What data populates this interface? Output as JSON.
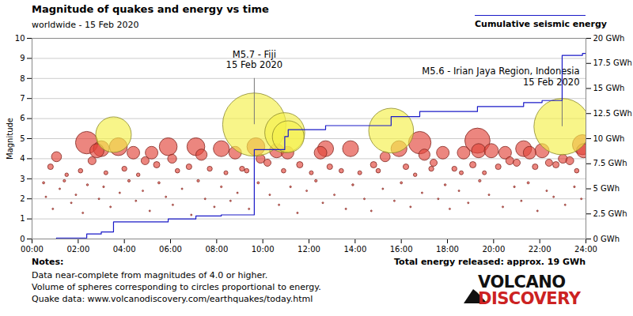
{
  "chart_data": {
    "type": "scatter",
    "title": "Magnitude of quakes and energy vs time",
    "subtitle": "worldwide - 15 Feb 2020",
    "y_label": "Magnitude",
    "xlim": [
      0,
      24
    ],
    "xticks": [
      {
        "value": 0,
        "label": "00:00"
      },
      {
        "value": 2,
        "label": "02:00"
      },
      {
        "value": 4,
        "label": "04:00"
      },
      {
        "value": 6,
        "label": "06:00"
      },
      {
        "value": 8,
        "label": "08:00"
      },
      {
        "value": 10,
        "label": "10:00"
      },
      {
        "value": 12,
        "label": "12:00"
      },
      {
        "value": 14,
        "label": "14:00"
      },
      {
        "value": 16,
        "label": "16:00"
      },
      {
        "value": 18,
        "label": "18:00"
      },
      {
        "value": 20,
        "label": "20:00"
      },
      {
        "value": 22,
        "label": "22:00"
      },
      {
        "value": 24,
        "label": "24:00"
      }
    ],
    "ylim": [
      0,
      10
    ],
    "yticks": [
      0,
      1,
      2,
      3,
      4,
      5,
      6,
      7,
      8,
      9,
      10
    ],
    "y2lim": [
      0,
      20
    ],
    "y2ticks": [
      {
        "value": 0,
        "label": "0 GWh"
      },
      {
        "value": 2.5,
        "label": "2.5 GWh"
      },
      {
        "value": 5,
        "label": "5 GWh"
      },
      {
        "value": 7.5,
        "label": "7.5 GWh"
      },
      {
        "value": 10,
        "label": "10 GWh"
      },
      {
        "value": 12.5,
        "label": "12.5 GWh"
      },
      {
        "value": 15,
        "label": "15 GWh"
      },
      {
        "value": 17.5,
        "label": "17.5 GWh"
      },
      {
        "value": 20,
        "label": "20 GWh"
      }
    ],
    "grid": "y",
    "legend": "top-right",
    "series": [
      {
        "type": "scatter",
        "marker": "circle",
        "color": "#e2453a",
        "x": [
          1.06,
          2.37,
          2.81,
          3.0,
          3.74,
          4.39,
          4.9,
          5.18,
          5.9,
          6.07,
          7.1,
          7.34,
          8.2,
          8.8,
          9.7,
          10.6,
          11.07,
          12.5,
          12.72,
          13.8,
          15.3,
          15.9,
          16.8,
          17.0,
          17.8,
          18.7,
          19.3,
          19.35,
          19.9,
          20.5,
          21.3,
          21.56,
          22.1,
          23.0,
          23.85,
          23.9,
          0.8,
          1.5,
          2.1,
          2.6,
          3.2,
          4.0,
          4.6,
          5.4,
          6.3,
          6.8,
          7.7,
          8.4,
          9.1,
          9.3,
          9.9,
          10.2,
          10.9,
          11.6,
          12.1,
          12.9,
          13.4,
          14.2,
          14.8,
          15.0,
          16.2,
          16.6,
          17.3,
          17.4,
          18.3,
          18.6,
          19.1,
          19.6,
          20.2,
          20.7,
          21.0,
          21.8,
          22.4,
          22.7,
          23.3,
          23.6,
          0.5,
          0.6,
          0.9,
          1.2,
          1.4,
          1.7,
          1.9,
          2.2,
          2.4,
          2.9,
          3.1,
          3.4,
          3.8,
          4.2,
          4.5,
          4.8,
          5.1,
          5.5,
          5.8,
          6.1,
          6.5,
          6.9,
          7.2,
          7.5,
          7.9,
          8.2,
          8.6,
          8.9,
          9.4,
          9.8,
          10.3,
          10.7,
          11.2,
          11.5,
          11.9,
          12.3,
          12.6,
          13.1,
          13.6,
          13.9,
          14.4,
          14.7,
          15.2,
          15.7,
          16.0,
          16.4,
          16.9,
          17.6,
          17.9,
          18.1,
          18.5,
          18.9,
          19.4,
          19.8,
          20.4,
          20.9,
          21.2,
          21.5,
          21.9,
          22.3,
          22.6,
          23.1,
          23.5,
          23.8
        ],
        "values": [
          4.1,
          4.8,
          4.4,
          4.5,
          4.6,
          4.3,
          3.9,
          4.3,
          4.6,
          4.0,
          4.6,
          4.2,
          4.5,
          4.3,
          4.6,
          4.4,
          4.3,
          4.3,
          4.5,
          4.5,
          4.1,
          4.5,
          4.8,
          4.2,
          4.3,
          4.3,
          4.9,
          4.4,
          4.4,
          4.3,
          4.5,
          4.3,
          4.4,
          4.0,
          4.7,
          4.4,
          3.6,
          3.2,
          3.4,
          3.9,
          3.3,
          3.5,
          3.2,
          3.7,
          3.4,
          3.6,
          3.5,
          3.3,
          3.5,
          3.4,
          4.0,
          3.8,
          3.4,
          3.7,
          3.3,
          3.6,
          3.4,
          3.3,
          3.7,
          3.4,
          3.6,
          3.2,
          3.5,
          3.8,
          3.5,
          3.3,
          3.7,
          3.3,
          3.6,
          3.9,
          3.8,
          3.6,
          3.8,
          3.7,
          3.9,
          3.4,
          2.8,
          2.1,
          1.5,
          2.5,
          2.9,
          1.8,
          2.2,
          1.3,
          2.7,
          2.0,
          2.6,
          1.6,
          2.3,
          2.9,
          1.9,
          2.4,
          1.4,
          2.8,
          2.1,
          1.7,
          2.5,
          1.2,
          2.9,
          2.0,
          1.6,
          2.6,
          1.9,
          2.3,
          1.5,
          2.8,
          2.2,
          1.7,
          2.6,
          1.3,
          2.4,
          2.9,
          1.8,
          2.2,
          1.5,
          2.7,
          2.0,
          1.4,
          2.5,
          1.9,
          2.8,
          1.6,
          2.3,
          2.0,
          2.7,
          1.5,
          2.4,
          1.8,
          2.9,
          2.2,
          1.6,
          2.6,
          1.9,
          2.8,
          1.4,
          2.4,
          2.1,
          1.7,
          2.6,
          2.0
        ]
      },
      {
        "type": "scatter",
        "marker": "circle",
        "color": "#f5f04a",
        "x": [
          3.53,
          9.63,
          10.95,
          11.1,
          15.56,
          22.97
        ],
        "values": [
          5.2,
          5.7,
          5.3,
          5.1,
          5.4,
          5.6
        ]
      },
      {
        "type": "line",
        "name": "Cumulative seismic energy",
        "color": "#1a1ac8",
        "axis": "y2",
        "line_style": "step",
        "x": [
          0,
          1.06,
          2.37,
          3.0,
          3.53,
          5.9,
          7.1,
          8.2,
          9.63,
          10.95,
          11.1,
          12.72,
          15.56,
          16.8,
          19.3,
          21.3,
          22.1,
          22.97,
          23.85,
          24
        ],
        "values": [
          0,
          0.1,
          0.5,
          0.7,
          1.7,
          2.0,
          2.3,
          2.4,
          8.9,
          10.2,
          10.9,
          11.3,
          12.2,
          12.7,
          13.2,
          13.6,
          13.8,
          18.3,
          18.5,
          18.5
        ]
      }
    ],
    "annotations": [
      {
        "text": [
          "M5.7 - Fiji",
          "15 Feb 2020"
        ],
        "x": 9.63,
        "y": 5.7
      },
      {
        "text": [
          "M5.6 - Irian Jaya Region, Indonesia",
          "15 Feb 2020"
        ],
        "x": 22.97,
        "y": 5.6
      }
    ],
    "notes": {
      "heading": "Notes:",
      "lines": [
        "Data near-complete from magnitudes of 4.0 or higher.",
        "Volume of spheres corresponding to circles proportional to energy.",
        "Quake data: www.volcanodiscovery.com/earthquakes/today.html"
      ]
    },
    "total_energy": "Total energy released: approx. 19 GWh",
    "logo": [
      "VOLCANO",
      "DISCOVERY"
    ]
  }
}
